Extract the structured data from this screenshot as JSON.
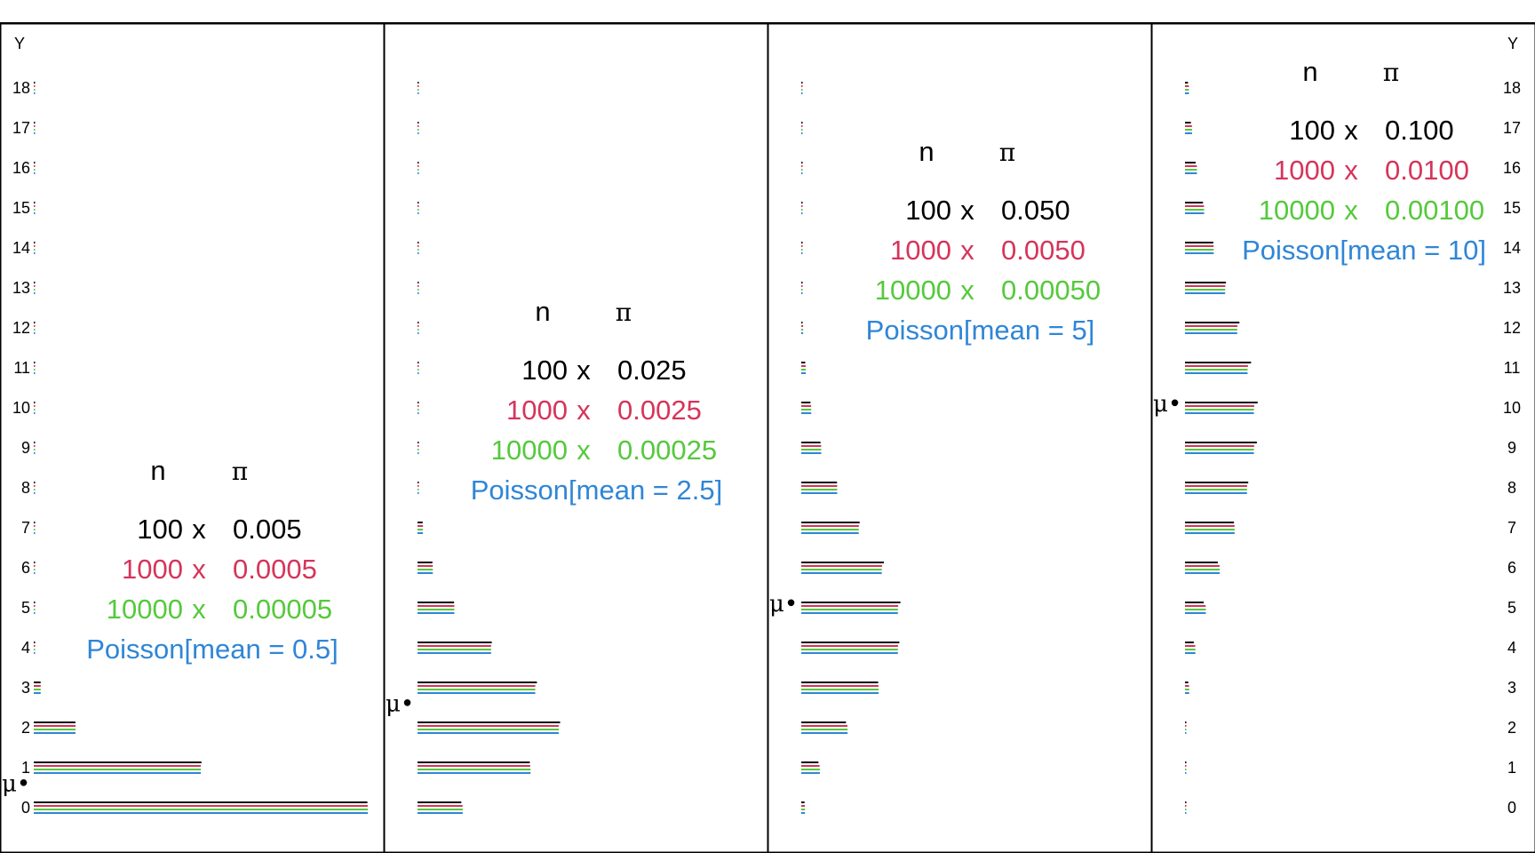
{
  "chart_data": {
    "type": "bar",
    "orientation": "horizontal",
    "y_axis_label": "Y",
    "categories": [
      0,
      1,
      2,
      3,
      4,
      5,
      6,
      7,
      8,
      9,
      10,
      11,
      12,
      13,
      14,
      15,
      16,
      17,
      18
    ],
    "series_colors": [
      "#000000",
      "#d6345a",
      "#55c93c",
      "#2f86d6"
    ],
    "panels": [
      {
        "mean": 0.5,
        "legend": {
          "header_n": "n",
          "header_pi": "π",
          "rows": [
            {
              "n": "100",
              "x": "x",
              "pi": "0.005",
              "color": "#000000"
            },
            {
              "n": "1000",
              "x": "x",
              "pi": "0.0005",
              "color": "#d6345a"
            },
            {
              "n": "10000",
              "x": "x",
              "pi": "0.00005",
              "color": "#55c93c"
            }
          ],
          "poisson": "Poisson[mean = 0.5]"
        },
        "series": [
          {
            "values": [
              0.6058,
              0.3044,
              0.0757,
              0.0124,
              0.0015,
              0.0001,
              0,
              0,
              0,
              0,
              0,
              0,
              0,
              0,
              0,
              0,
              0,
              0,
              0
            ]
          },
          {
            "values": [
              0.6064,
              0.3033,
              0.0758,
              0.0126,
              0.0016,
              0.0002,
              0,
              0,
              0,
              0,
              0,
              0,
              0,
              0,
              0,
              0,
              0,
              0,
              0
            ]
          },
          {
            "values": [
              0.6065,
              0.3033,
              0.0758,
              0.0126,
              0.0016,
              0.0002,
              0,
              0,
              0,
              0,
              0,
              0,
              0,
              0,
              0,
              0,
              0,
              0,
              0
            ]
          },
          {
            "values": [
              0.6065,
              0.3033,
              0.0758,
              0.0126,
              0.0016,
              0.0002,
              0,
              0,
              0,
              0,
              0,
              0,
              0,
              0,
              0,
              0,
              0,
              0,
              0
            ]
          }
        ]
      },
      {
        "mean": 2.5,
        "legend": {
          "header_n": "n",
          "header_pi": "π",
          "rows": [
            {
              "n": "100",
              "x": "x",
              "pi": "0.025",
              "color": "#000000"
            },
            {
              "n": "1000",
              "x": "x",
              "pi": "0.0025",
              "color": "#d6345a"
            },
            {
              "n": "10000",
              "x": "x",
              "pi": "0.00025",
              "color": "#55c93c"
            }
          ],
          "poisson": "Poisson[mean = 2.5]"
        },
        "series": [
          {
            "values": [
              0.0795,
              0.2039,
              0.2589,
              0.2168,
              0.1348,
              0.0664,
              0.027,
              0.0093,
              0.0028,
              0.0007,
              0.0002,
              0,
              0,
              0,
              0,
              0,
              0,
              0,
              0
            ]
          },
          {
            "values": [
              0.0818,
              0.2047,
              0.2564,
              0.2139,
              0.1337,
              0.0668,
              0.0278,
              0.0099,
              0.0031,
              0.0009,
              0.0002,
              0,
              0,
              0,
              0,
              0,
              0,
              0,
              0
            ]
          },
          {
            "values": [
              0.0821,
              0.2052,
              0.2565,
              0.2138,
              0.1336,
              0.0668,
              0.0278,
              0.0099,
              0.0031,
              0.0009,
              0.0002,
              0,
              0,
              0,
              0,
              0,
              0,
              0,
              0
            ]
          },
          {
            "values": [
              0.0821,
              0.2052,
              0.2565,
              0.2138,
              0.1336,
              0.0668,
              0.0278,
              0.0099,
              0.0031,
              0.0009,
              0.0002,
              0,
              0,
              0,
              0,
              0,
              0,
              0,
              0
            ]
          }
        ]
      },
      {
        "mean": 5,
        "legend": {
          "header_n": "n",
          "header_pi": "π",
          "rows": [
            {
              "n": "100",
              "x": "x",
              "pi": "0.050",
              "color": "#000000"
            },
            {
              "n": "1000",
              "x": "x",
              "pi": "0.0050",
              "color": "#d6345a"
            },
            {
              "n": "10000",
              "x": "x",
              "pi": "0.00050",
              "color": "#55c93c"
            }
          ],
          "poisson": "Poisson[mean = 5]"
        },
        "series": [
          {
            "values": [
              0.0059,
              0.0312,
              0.0812,
              0.1396,
              0.1781,
              0.18,
              0.15,
              0.106,
              0.0649,
              0.0349,
              0.0167,
              0.0072,
              0.0028,
              0.001,
              0.0003,
              0.0001,
              0,
              0,
              0
            ]
          },
          {
            "values": [
              0.0066,
              0.0333,
              0.0838,
              0.1402,
              0.1757,
              0.176,
              0.1467,
              0.1046,
              0.0652,
              0.0361,
              0.0179,
              0.0081,
              0.0034,
              0.0013,
              0.0005,
              0.0001,
              0,
              0,
              0
            ]
          },
          {
            "values": [
              0.0067,
              0.0337,
              0.0842,
              0.1404,
              0.1755,
              0.1755,
              0.1462,
              0.1044,
              0.0653,
              0.0363,
              0.0181,
              0.0082,
              0.0034,
              0.0013,
              0.0005,
              0.0002,
              0,
              0,
              0
            ]
          },
          {
            "values": [
              0.0067,
              0.0337,
              0.0842,
              0.1404,
              0.1755,
              0.1755,
              0.1462,
              0.1044,
              0.0653,
              0.0363,
              0.0181,
              0.0082,
              0.0034,
              0.0013,
              0.0005,
              0.0002,
              0,
              0,
              0
            ]
          }
        ]
      },
      {
        "mean": 10,
        "legend": {
          "header_n": "n",
          "header_pi": "π",
          "rows": [
            {
              "n": "100",
              "x": "x",
              "pi": "0.100",
              "color": "#000000"
            },
            {
              "n": "1000",
              "x": "x",
              "pi": "0.0100",
              "color": "#d6345a"
            },
            {
              "n": "10000",
              "x": "x",
              "pi": "0.00100",
              "color": "#55c93c"
            }
          ],
          "poisson": "Poisson[mean = 10]"
        },
        "series": [
          {
            "values": [
              3e-05,
              0.0003,
              0.0016,
              0.0059,
              0.0159,
              0.0339,
              0.0596,
              0.0889,
              0.1148,
              0.1304,
              0.1319,
              0.1199,
              0.0988,
              0.0743,
              0.0513,
              0.0327,
              0.0193,
              0.0106,
              0.0054
            ]
          },
          {
            "values": [
              4e-05,
              0.0004,
              0.0022,
              0.0074,
              0.0186,
              0.0375,
              0.0627,
              0.09,
              0.1128,
              0.1256,
              0.1257,
              0.1143,
              0.0952,
              0.0731,
              0.052,
              0.0345,
              0.0215,
              0.0126,
              0.007
            ]
          },
          {
            "values": [
              5e-05,
              0.0005,
              0.0023,
              0.0076,
              0.0189,
              0.0378,
              0.0631,
              0.0901,
              0.1126,
              0.1251,
              0.1251,
              0.1137,
              0.0948,
              0.0729,
              0.0521,
              0.0347,
              0.0217,
              0.0128,
              0.0071
            ]
          },
          {
            "values": [
              5e-05,
              0.0005,
              0.0023,
              0.0076,
              0.0189,
              0.0378,
              0.0631,
              0.0901,
              0.1126,
              0.1251,
              0.1251,
              0.1137,
              0.0948,
              0.0729,
              0.0521,
              0.0347,
              0.0217,
              0.0128,
              0.0071
            ]
          }
        ]
      }
    ],
    "mu_marker": "μ•",
    "tick_axes": "left on first panel, right on last panel",
    "grid": false,
    "legend_placement": "inside each panel"
  }
}
